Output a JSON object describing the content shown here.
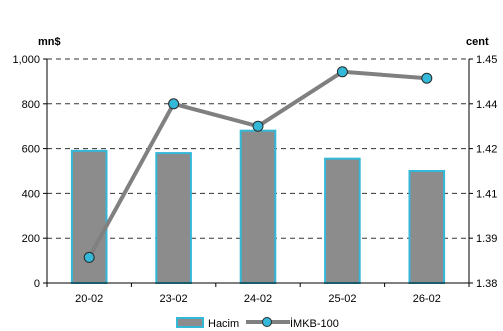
{
  "chart_data": {
    "type": "bar+line",
    "categories": [
      "20-02",
      "23-02",
      "24-02",
      "25-02",
      "26-02"
    ],
    "series": [
      {
        "name": "Hacim",
        "type": "bar",
        "axis": "left",
        "values": [
          590,
          580,
          680,
          555,
          500
        ],
        "fill": "#8c8c8c",
        "stroke": "#33b8d8"
      },
      {
        "name": "İMKB-100",
        "type": "line",
        "axis": "right",
        "values": [
          1.388,
          1.436,
          1.429,
          1.446,
          1.444
        ],
        "line_color": "#808080",
        "marker_fill": "#33b8d8"
      }
    ],
    "left_axis": {
      "unit": "mn$",
      "min": 0,
      "max": 1000,
      "ticks": [
        0,
        200,
        400,
        600,
        800,
        1000
      ],
      "tick_labels": [
        "0",
        "200",
        "400",
        "600",
        "800",
        "1,000"
      ]
    },
    "right_axis": {
      "unit": "cent",
      "min": 1.38,
      "max": 1.45,
      "tick_labels": [
        "1.38",
        "1.39",
        "1.41",
        "1.42",
        "1.44",
        "1.45"
      ]
    },
    "grid": "horizontal-dashed",
    "legend_position": "bottom-center"
  }
}
